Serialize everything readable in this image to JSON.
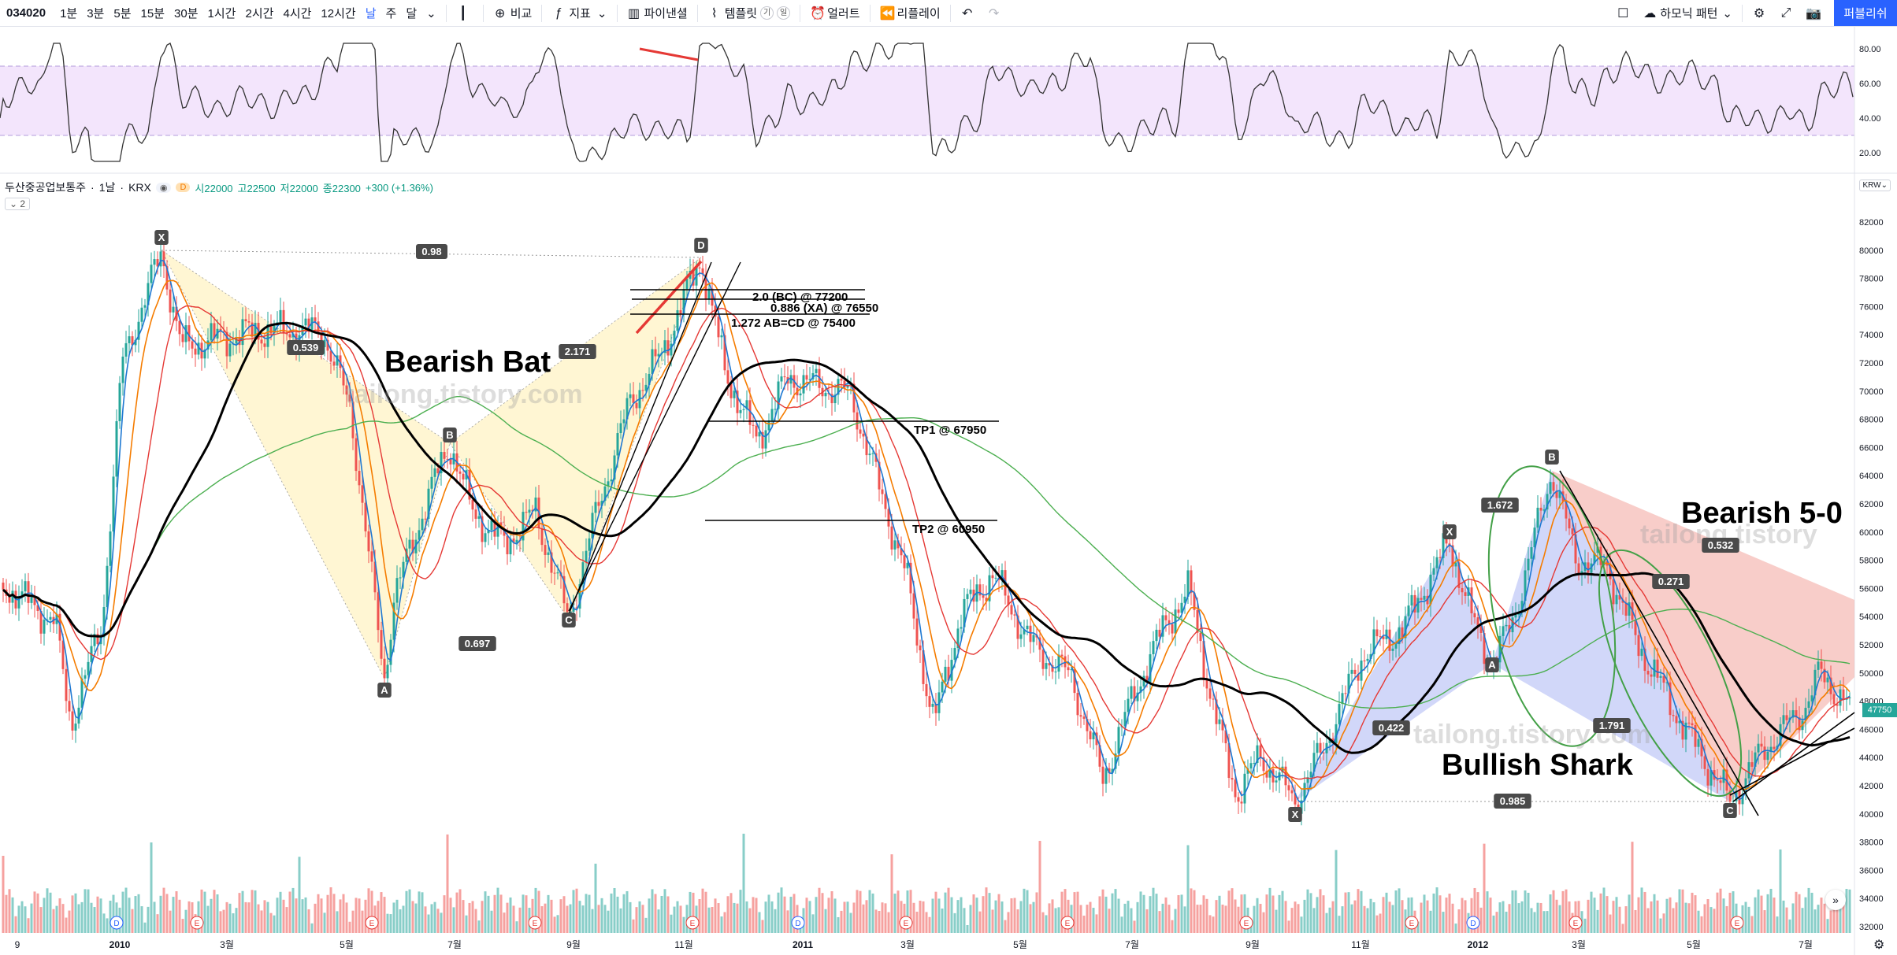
{
  "toolbar": {
    "symbol": "034020",
    "intervals": [
      "1분",
      "3분",
      "5분",
      "15분",
      "30분",
      "1시간",
      "2시간",
      "4시간",
      "12시간",
      "날",
      "주",
      "달"
    ],
    "active_interval": "날",
    "compare": "비교",
    "indicators": "지표",
    "financials": "파이낸셜",
    "templates": "템플릿",
    "templates_badge_1": "기",
    "templates_badge_2": "일",
    "alert": "얼러트",
    "replay": "리플레이",
    "harmonic": "하모닉 패턴",
    "publish": "퍼블리쉬"
  },
  "legend": {
    "name": "두산중공업보통주",
    "interval": "1날",
    "exchange": "KRX",
    "open": "시22000",
    "high": "고22500",
    "low": "저22000",
    "close": "종22300",
    "change": "+300 (+1.36%)",
    "badge": "D",
    "collapse": "2"
  },
  "rsi_axis": [
    "80.00",
    "60.00",
    "40.00",
    "20.00"
  ],
  "price_axis": [
    "82000",
    "80000",
    "78000",
    "76000",
    "74000",
    "72000",
    "70000",
    "68000",
    "66000",
    "64000",
    "62000",
    "60000",
    "58000",
    "56000",
    "54000",
    "52000",
    "50000",
    "48000",
    "46000",
    "44000",
    "42000",
    "40000",
    "38000",
    "36000",
    "34000",
    "32000"
  ],
  "currency": "KRW",
  "last_price": "47750",
  "time_axis": [
    "9",
    "2010",
    "3월",
    "5월",
    "7월",
    "9월",
    "11월",
    "2011",
    "3월",
    "5월",
    "7월",
    "9월",
    "11월",
    "2012",
    "3월",
    "5월",
    "7월"
  ],
  "annotations": {
    "bearish_bat": "Bearish Bat",
    "bearish_50": "Bearish 5-0",
    "bullish_shark": "Bullish Shark",
    "watermark": "tailong.tistory.com",
    "bc": "2.0 (BC) @ 77200",
    "xa": "0.886 (XA) @ 76550",
    "abcd": "1.272 AB=CD @ 75400",
    "tp1": "TP1 @ 67950",
    "tp2": "TP2 @ 60950"
  },
  "ratios": [
    "0.98",
    "0.539",
    "2.171",
    "0.697",
    "1.672",
    "0.532",
    "0.271",
    "0.422",
    "1.791",
    "0.985"
  ],
  "points": [
    "X",
    "A",
    "B",
    "C",
    "D"
  ],
  "colors": {
    "up": "#26a69a",
    "down": "#ef5350",
    "blue": "#1e78d2",
    "orange": "#f57c00",
    "red": "#e53935",
    "black": "#000000",
    "green": "#4caf50",
    "rsi_band": "#f3e5fc"
  }
}
